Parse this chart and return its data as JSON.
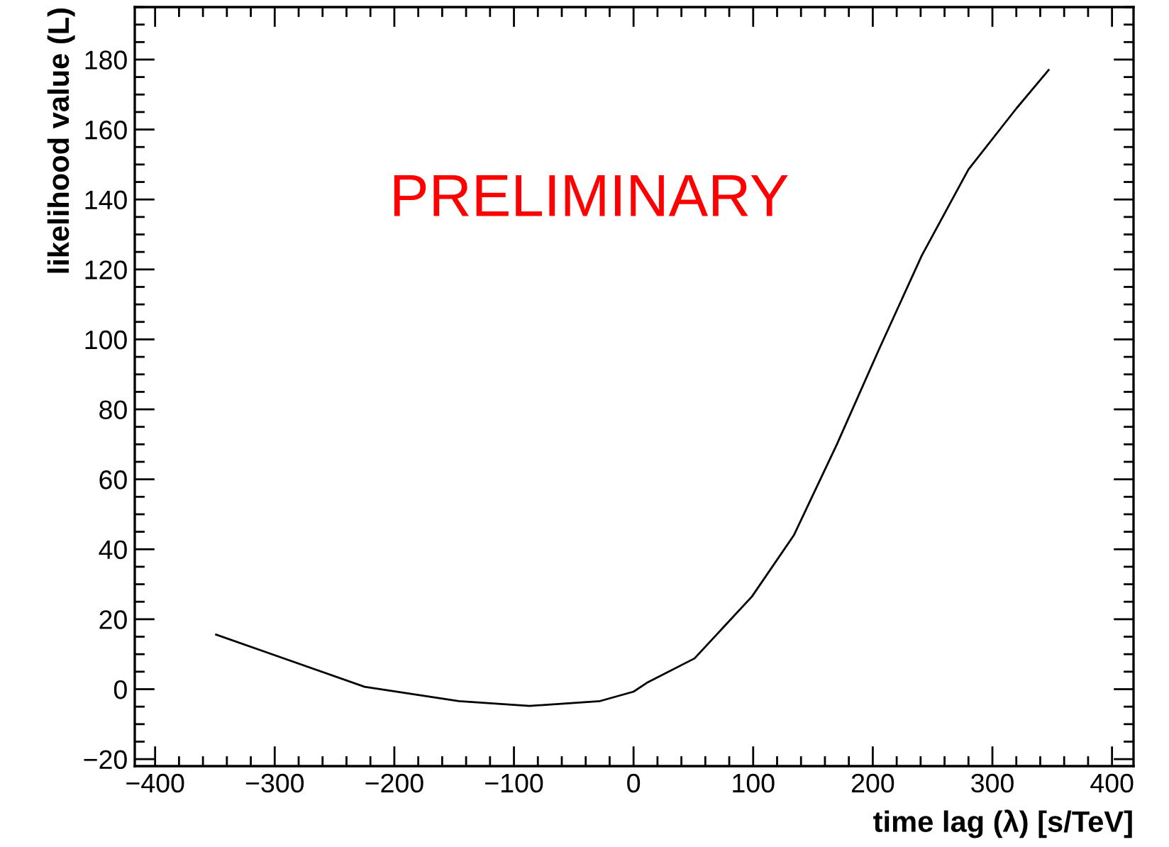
{
  "chart_data": {
    "type": "line",
    "xlabel": "time lag (λ) [s/TeV]",
    "ylabel": "likelihood value (L)",
    "annotations": [
      "PRELIMINARY"
    ],
    "x": [
      -349,
      -304,
      -225,
      -146,
      -87,
      -28,
      0,
      12,
      51,
      99,
      134,
      170,
      205,
      241,
      280,
      320,
      347
    ],
    "series": [
      {
        "color": "#000000",
        "values": [
          15.6,
          10.2,
          0.7,
          -3.4,
          -4.8,
          -3.4,
          -0.7,
          2,
          8.8,
          26.5,
          44,
          70,
          97,
          124,
          148.6,
          166,
          177
        ]
      }
    ],
    "xlim": [
      -417,
      418
    ],
    "ylim": [
      -22,
      195
    ],
    "xticks": [
      {
        "value": -400,
        "label": "−400"
      },
      {
        "value": -300,
        "label": "−300"
      },
      {
        "value": -200,
        "label": "−200"
      },
      {
        "value": -100,
        "label": "−100"
      },
      0,
      100,
      200,
      300,
      400
    ],
    "yticks": [
      {
        "value": -20,
        "label": "−20"
      },
      0,
      20,
      40,
      60,
      80,
      100,
      120,
      140,
      160,
      180
    ],
    "grid": false,
    "marker": "none",
    "line_style": "solid"
  }
}
